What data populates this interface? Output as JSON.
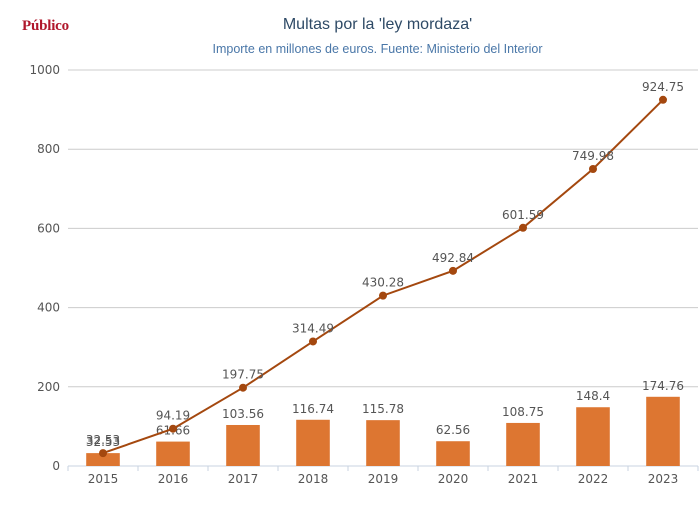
{
  "header": {
    "brand": "Público",
    "title": "Multas por la 'ley mordaza'",
    "subtitle": "Importe en millones de euros. Fuente: Ministerio del Interior"
  },
  "colors": {
    "bar": "#dd7631",
    "line": "#a4480f",
    "grid": "#cccccc"
  },
  "chart_data": {
    "type": "bar",
    "title": "Multas por la 'ley mordaza'",
    "subtitle": "Importe en millones de euros. Fuente: Ministerio del Interior",
    "categories": [
      "2015",
      "2016",
      "2017",
      "2018",
      "2019",
      "2020",
      "2021",
      "2022",
      "2023"
    ],
    "ylim": [
      0,
      1000
    ],
    "yticks": [
      0,
      200,
      400,
      600,
      800,
      1000
    ],
    "grid": true,
    "series": [
      {
        "type": "bar",
        "values": [
          32.53,
          61.66,
          103.56,
          116.74,
          115.78,
          62.56,
          108.75,
          148.4,
          174.76
        ],
        "labels": [
          "32.53",
          "61.66",
          "103.56",
          "116.74",
          "115.78",
          "62.56",
          "108.75",
          "148.4",
          "174.76"
        ]
      },
      {
        "type": "line",
        "values": [
          32.53,
          94.19,
          197.75,
          314.49,
          430.28,
          492.84,
          601.59,
          749.98,
          924.75
        ],
        "labels": [
          "32.53",
          "94.19",
          "197.75",
          "314.49",
          "430.28",
          "492.84",
          "601.59",
          "749.98",
          "924.75"
        ]
      }
    ]
  }
}
